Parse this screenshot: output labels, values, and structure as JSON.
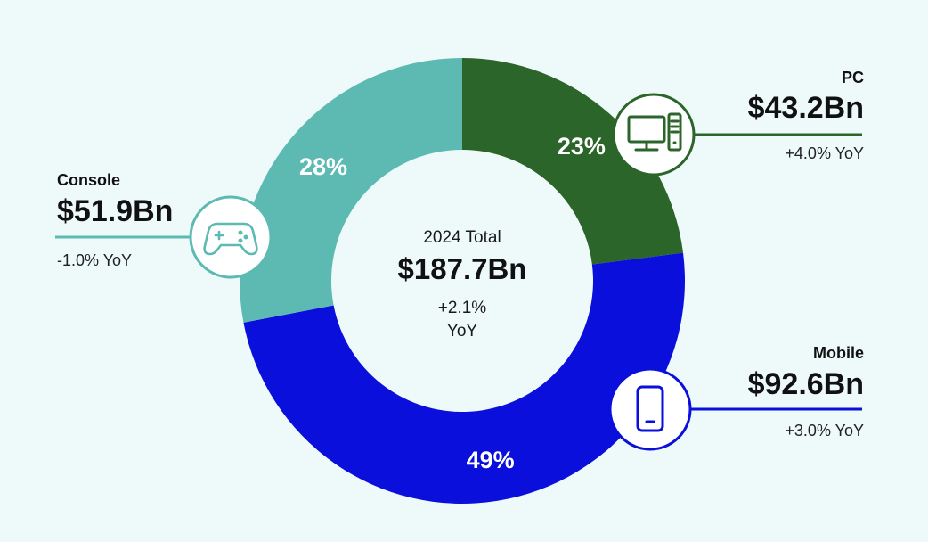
{
  "chart_data": {
    "type": "pie",
    "style": "donut",
    "center": {
      "subtitle": "2024 Total",
      "total": "$187.7Bn",
      "yoy_line1": "+2.1%",
      "yoy_line2": "YoY"
    },
    "slices": [
      {
        "name": "PC",
        "percent": 23,
        "percent_label": "23%",
        "value_label": "$43.2Bn",
        "yoy": "+4.0% YoY",
        "color": "#2b6529",
        "icon": "desktop-computer-icon"
      },
      {
        "name": "Mobile",
        "percent": 49,
        "percent_label": "49%",
        "value_label": "$92.6Bn",
        "yoy": "+3.0% YoY",
        "color": "#0a0fdc",
        "icon": "smartphone-icon"
      },
      {
        "name": "Console",
        "percent": 28,
        "percent_label": "28%",
        "value_label": "$51.9Bn",
        "yoy": "-1.0% YoY",
        "color": "#5dbab3",
        "icon": "gamepad-icon"
      }
    ]
  }
}
